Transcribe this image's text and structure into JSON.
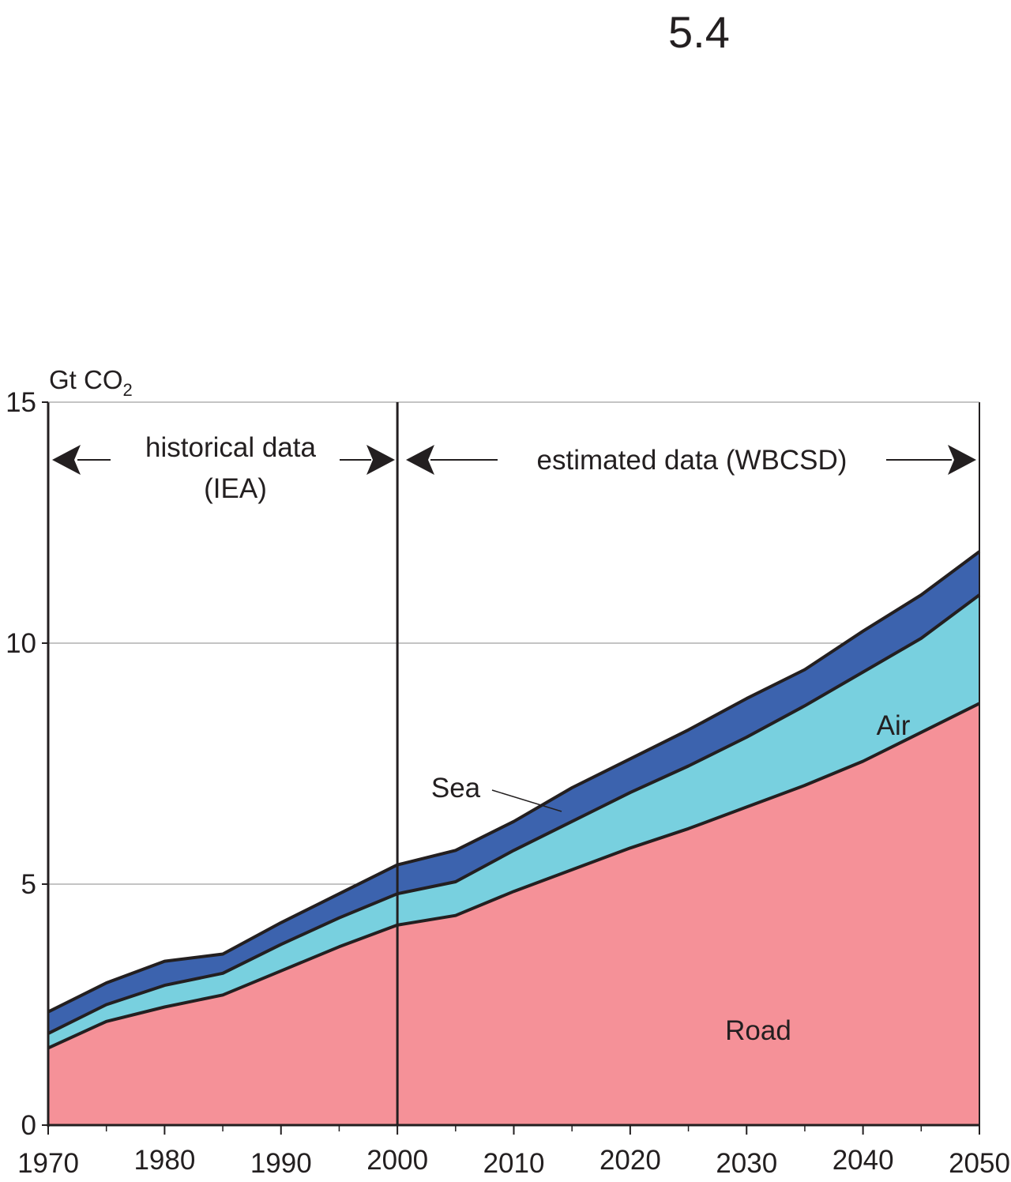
{
  "figure_number": "5.4",
  "chart_data": {
    "type": "area",
    "stacked": true,
    "ylabel": "Gt CO",
    "ylabel_subscript": "2",
    "ylim": [
      0,
      15
    ],
    "xlim": [
      1970,
      2050
    ],
    "x_ticks": [
      1970,
      1980,
      1990,
      2000,
      2010,
      2020,
      2030,
      2040,
      2050
    ],
    "y_ticks": [
      0,
      5,
      10,
      15
    ],
    "grid": "horizontal at y ticks",
    "x": [
      1970,
      1975,
      1980,
      1985,
      1990,
      1995,
      2000,
      2005,
      2010,
      2015,
      2020,
      2025,
      2030,
      2035,
      2040,
      2045,
      2050
    ],
    "series": [
      {
        "name": "Road",
        "color": "#f59198",
        "values": [
          1.6,
          2.15,
          2.45,
          2.7,
          3.2,
          3.7,
          4.15,
          4.35,
          4.85,
          5.3,
          5.75,
          6.15,
          6.6,
          7.05,
          7.55,
          8.15,
          8.75
        ]
      },
      {
        "name": "Air",
        "color": "#78d0df",
        "values": [
          0.3,
          0.35,
          0.45,
          0.45,
          0.55,
          0.6,
          0.65,
          0.7,
          0.85,
          1.0,
          1.15,
          1.3,
          1.45,
          1.65,
          1.85,
          1.95,
          2.25
        ]
      },
      {
        "name": "Sea",
        "color": "#3c63ae",
        "values": [
          0.45,
          0.45,
          0.5,
          0.4,
          0.45,
          0.5,
          0.6,
          0.65,
          0.6,
          0.7,
          0.7,
          0.75,
          0.8,
          0.75,
          0.85,
          0.9,
          0.9
        ]
      }
    ],
    "annotations": {
      "historical_line1": "historical data",
      "historical_line2": "(IEA)",
      "estimated": "estimated data (WBCSD)",
      "divider_year": 2000
    },
    "series_labels": {
      "road": "Road",
      "air": "Air",
      "sea": "Sea"
    }
  }
}
